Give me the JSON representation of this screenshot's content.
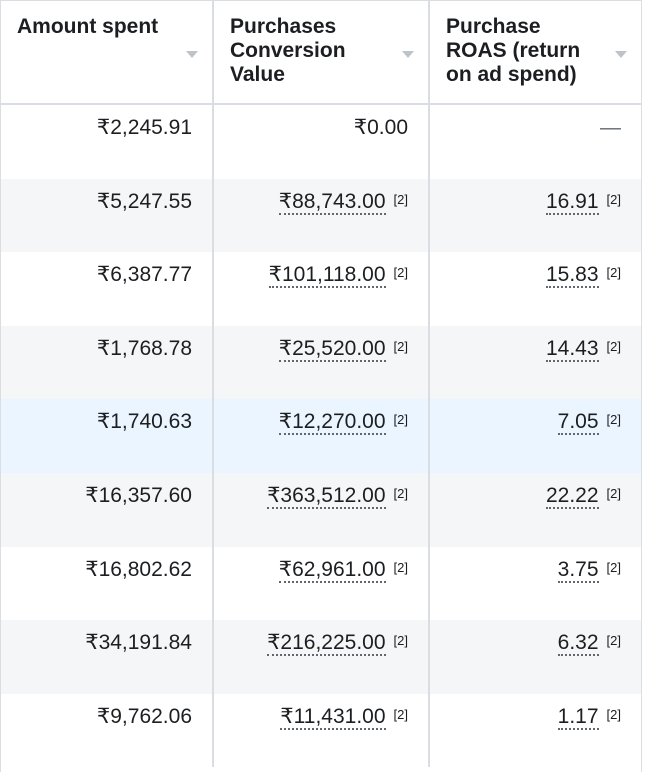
{
  "headers": [
    {
      "label": "Amount spent"
    },
    {
      "label": "Purchases Conversion Value"
    },
    {
      "label": "Purchase ROAS (return on ad spend)"
    }
  ],
  "rows": [
    {
      "spent": "₹2,245.91",
      "conv": "₹0.00",
      "conv_note": "",
      "roas": "—",
      "roas_note": "",
      "style": "normal"
    },
    {
      "spent": "₹5,247.55",
      "conv": "₹88,743.00",
      "conv_note": "[2]",
      "roas": "16.91",
      "roas_note": "[2]",
      "style": "alt"
    },
    {
      "spent": "₹6,387.77",
      "conv": "₹101,118.00",
      "conv_note": "[2]",
      "roas": "15.83",
      "roas_note": "[2]",
      "style": "normal"
    },
    {
      "spent": "₹1,768.78",
      "conv": "₹25,520.00",
      "conv_note": "[2]",
      "roas": "14.43",
      "roas_note": "[2]",
      "style": "alt"
    },
    {
      "spent": "₹1,740.63",
      "conv": "₹12,270.00",
      "conv_note": "[2]",
      "roas": "7.05",
      "roas_note": "[2]",
      "style": "hl"
    },
    {
      "spent": "₹16,357.60",
      "conv": "₹363,512.00",
      "conv_note": "[2]",
      "roas": "22.22",
      "roas_note": "[2]",
      "style": "alt"
    },
    {
      "spent": "₹16,802.62",
      "conv": "₹62,961.00",
      "conv_note": "[2]",
      "roas": "3.75",
      "roas_note": "[2]",
      "style": "normal"
    },
    {
      "spent": "₹34,191.84",
      "conv": "₹216,225.00",
      "conv_note": "[2]",
      "roas": "6.32",
      "roas_note": "[2]",
      "style": "alt"
    },
    {
      "spent": "₹9,762.06",
      "conv": "₹11,431.00",
      "conv_note": "[2]",
      "roas": "1.17",
      "roas_note": "[2]",
      "style": "normal"
    }
  ]
}
